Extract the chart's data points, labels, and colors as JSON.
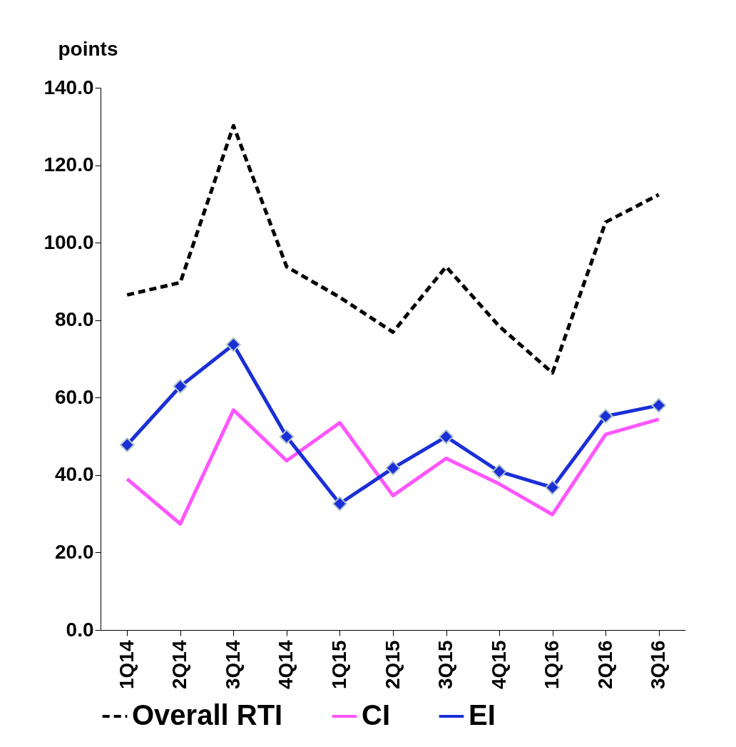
{
  "chart_data": {
    "type": "line",
    "ylabel": "points",
    "categories": [
      "1Q14",
      "2Q14",
      "3Q14",
      "4Q14",
      "1Q15",
      "2Q15",
      "3Q15",
      "4Q15",
      "1Q16",
      "2Q16",
      "3Q16"
    ],
    "series": [
      {
        "name": "Overall RTI",
        "color": "#000000",
        "line_style": "dashed",
        "marker": "none",
        "values": [
          86.5,
          89.7,
          130.2,
          93.8,
          85.9,
          76.9,
          93.8,
          78.4,
          66.4,
          105.3,
          112.4
        ]
      },
      {
        "name": "CI",
        "color": "#ff55ff",
        "line_style": "solid",
        "marker": "none",
        "values": [
          39.0,
          27.4,
          56.8,
          43.7,
          53.5,
          34.7,
          44.3,
          37.7,
          29.8,
          50.5,
          54.4
        ]
      },
      {
        "name": "EI",
        "color": "#1a2fd6",
        "line_style": "solid",
        "marker": "diamond",
        "values": [
          47.8,
          62.9,
          73.7,
          49.9,
          32.6,
          41.8,
          49.9,
          40.9,
          36.8,
          55.2,
          58.0
        ]
      }
    ],
    "ylim": [
      0,
      140
    ],
    "yticks": [
      {
        "value": 0,
        "label": "0.0"
      },
      {
        "value": 20,
        "label": "20.0"
      },
      {
        "value": 40,
        "label": "40.0"
      },
      {
        "value": 60,
        "label": "60.0"
      },
      {
        "value": 80,
        "label": "80.0"
      },
      {
        "value": 100,
        "label": "100.0"
      },
      {
        "value": 120,
        "label": "120.0"
      },
      {
        "value": 140,
        "label": "140.0"
      }
    ],
    "grid": false,
    "legend": "bottom"
  }
}
